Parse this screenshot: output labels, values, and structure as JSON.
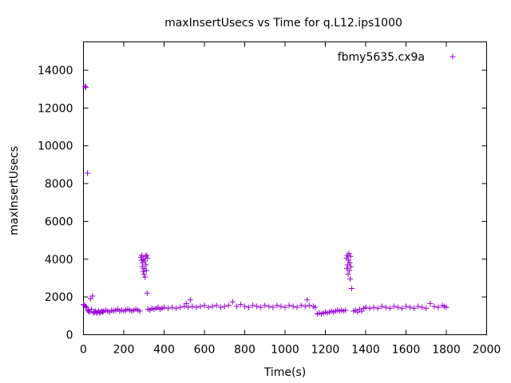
{
  "chart_data": {
    "type": "scatter",
    "title": "maxInsertUsecs vs Time for q.L12.ips1000",
    "xlabel": "Time(s)",
    "ylabel": "maxInsertUsecs",
    "xlim": [
      0,
      2000
    ],
    "ylim": [
      0,
      15500
    ],
    "xticks": [
      0,
      200,
      400,
      600,
      800,
      1000,
      1200,
      1400,
      1600,
      1800,
      2000
    ],
    "yticks": [
      0,
      2000,
      4000,
      6000,
      8000,
      10000,
      12000,
      14000
    ],
    "grid": false,
    "legend_position": "top-right",
    "series_color": "#9400d3",
    "marker": "plus",
    "series": [
      {
        "name": "fbmy5635.cx9a",
        "points": [
          [
            0,
            1600
          ],
          [
            5,
            1550
          ],
          [
            8,
            13150
          ],
          [
            10,
            1500
          ],
          [
            12,
            13100
          ],
          [
            15,
            1450
          ],
          [
            20,
            8550
          ],
          [
            22,
            1300
          ],
          [
            25,
            1250
          ],
          [
            30,
            1200
          ],
          [
            35,
            1900
          ],
          [
            40,
            1350
          ],
          [
            45,
            2050
          ],
          [
            50,
            1150
          ],
          [
            55,
            1200
          ],
          [
            60,
            1250
          ],
          [
            65,
            1150
          ],
          [
            70,
            1200
          ],
          [
            75,
            1250
          ],
          [
            80,
            1150
          ],
          [
            85,
            1200
          ],
          [
            90,
            1250
          ],
          [
            95,
            1200
          ],
          [
            100,
            1250
          ],
          [
            110,
            1300
          ],
          [
            120,
            1250
          ],
          [
            130,
            1200
          ],
          [
            140,
            1300
          ],
          [
            150,
            1250
          ],
          [
            160,
            1300
          ],
          [
            170,
            1350
          ],
          [
            180,
            1250
          ],
          [
            190,
            1300
          ],
          [
            200,
            1250
          ],
          [
            210,
            1300
          ],
          [
            220,
            1350
          ],
          [
            230,
            1300
          ],
          [
            240,
            1250
          ],
          [
            250,
            1300
          ],
          [
            260,
            1350
          ],
          [
            270,
            1300
          ],
          [
            280,
            1250
          ],
          [
            285,
            4100
          ],
          [
            288,
            3950
          ],
          [
            290,
            4200
          ],
          [
            292,
            3600
          ],
          [
            294,
            3800
          ],
          [
            296,
            3350
          ],
          [
            298,
            4000
          ],
          [
            300,
            3200
          ],
          [
            302,
            3500
          ],
          [
            304,
            3900
          ],
          [
            306,
            3050
          ],
          [
            308,
            4150
          ],
          [
            310,
            3700
          ],
          [
            312,
            3400
          ],
          [
            314,
            4200
          ],
          [
            316,
            2200
          ],
          [
            318,
            4050
          ],
          [
            320,
            1350
          ],
          [
            330,
            1300
          ],
          [
            340,
            1400
          ],
          [
            350,
            1350
          ],
          [
            360,
            1400
          ],
          [
            370,
            1450
          ],
          [
            380,
            1350
          ],
          [
            390,
            1400
          ],
          [
            400,
            1450
          ],
          [
            420,
            1400
          ],
          [
            440,
            1450
          ],
          [
            460,
            1400
          ],
          [
            480,
            1450
          ],
          [
            500,
            1500
          ],
          [
            510,
            1650
          ],
          [
            520,
            1450
          ],
          [
            530,
            1850
          ],
          [
            540,
            1500
          ],
          [
            560,
            1450
          ],
          [
            580,
            1500
          ],
          [
            600,
            1550
          ],
          [
            620,
            1450
          ],
          [
            640,
            1500
          ],
          [
            660,
            1550
          ],
          [
            680,
            1450
          ],
          [
            700,
            1500
          ],
          [
            720,
            1550
          ],
          [
            740,
            1750
          ],
          [
            760,
            1500
          ],
          [
            780,
            1600
          ],
          [
            800,
            1500
          ],
          [
            820,
            1450
          ],
          [
            840,
            1550
          ],
          [
            860,
            1500
          ],
          [
            880,
            1450
          ],
          [
            900,
            1550
          ],
          [
            920,
            1500
          ],
          [
            940,
            1450
          ],
          [
            960,
            1550
          ],
          [
            980,
            1500
          ],
          [
            1000,
            1450
          ],
          [
            1020,
            1550
          ],
          [
            1040,
            1500
          ],
          [
            1060,
            1450
          ],
          [
            1080,
            1550
          ],
          [
            1100,
            1500
          ],
          [
            1110,
            1850
          ],
          [
            1120,
            1550
          ],
          [
            1140,
            1500
          ],
          [
            1150,
            1450
          ],
          [
            1160,
            1100
          ],
          [
            1170,
            1150
          ],
          [
            1180,
            1100
          ],
          [
            1190,
            1150
          ],
          [
            1200,
            1200
          ],
          [
            1210,
            1150
          ],
          [
            1220,
            1200
          ],
          [
            1230,
            1250
          ],
          [
            1240,
            1200
          ],
          [
            1250,
            1250
          ],
          [
            1260,
            1300
          ],
          [
            1270,
            1250
          ],
          [
            1280,
            1300
          ],
          [
            1290,
            1250
          ],
          [
            1300,
            1300
          ],
          [
            1305,
            4050
          ],
          [
            1307,
            3500
          ],
          [
            1309,
            4200
          ],
          [
            1311,
            3700
          ],
          [
            1313,
            3200
          ],
          [
            1315,
            3950
          ],
          [
            1317,
            4300
          ],
          [
            1319,
            3400
          ],
          [
            1321,
            3800
          ],
          [
            1323,
            2950
          ],
          [
            1325,
            4150
          ],
          [
            1327,
            3600
          ],
          [
            1330,
            2450
          ],
          [
            1340,
            1250
          ],
          [
            1350,
            1300
          ],
          [
            1360,
            1200
          ],
          [
            1370,
            1350
          ],
          [
            1380,
            1250
          ],
          [
            1390,
            1400
          ],
          [
            1400,
            1450
          ],
          [
            1420,
            1400
          ],
          [
            1440,
            1450
          ],
          [
            1460,
            1400
          ],
          [
            1480,
            1500
          ],
          [
            1500,
            1450
          ],
          [
            1520,
            1400
          ],
          [
            1540,
            1500
          ],
          [
            1560,
            1450
          ],
          [
            1580,
            1400
          ],
          [
            1600,
            1500
          ],
          [
            1620,
            1450
          ],
          [
            1640,
            1400
          ],
          [
            1660,
            1500
          ],
          [
            1680,
            1450
          ],
          [
            1700,
            1400
          ],
          [
            1720,
            1650
          ],
          [
            1740,
            1500
          ],
          [
            1760,
            1450
          ],
          [
            1780,
            1550
          ],
          [
            1790,
            1500
          ],
          [
            1800,
            1450
          ]
        ]
      }
    ]
  }
}
